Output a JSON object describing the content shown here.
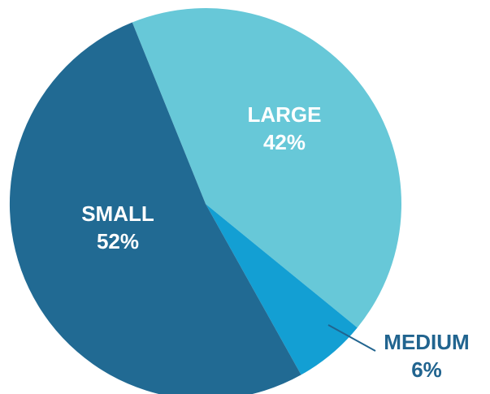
{
  "chart_data": {
    "type": "pie",
    "title": "",
    "slices": [
      {
        "label": "LARGE",
        "value": 42,
        "value_text": "42%",
        "color": "#67c8d8",
        "label_color": "#ffffff",
        "label_placement": "inside"
      },
      {
        "label": "MEDIUM",
        "value": 6,
        "value_text": "6%",
        "color": "#139fd3",
        "label_color": "#21648f",
        "label_placement": "outside-callout"
      },
      {
        "label": "SMALL",
        "value": 52,
        "value_text": "52%",
        "color": "#216a93",
        "label_color": "#ffffff",
        "label_placement": "inside"
      }
    ],
    "legend": "none"
  }
}
